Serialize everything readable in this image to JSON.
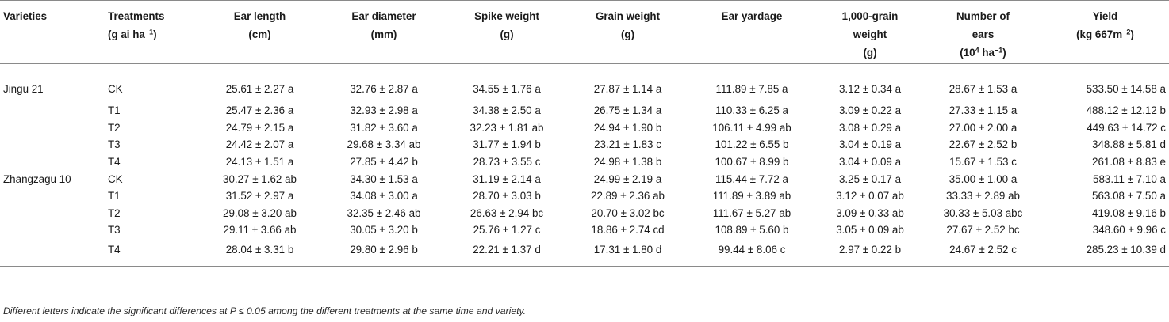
{
  "headers": {
    "varieties": [
      "Varieties"
    ],
    "treatments": [
      "Treatments",
      "(g ai ha",
      "−1",
      ")"
    ],
    "ear_length": [
      "Ear length",
      "(cm)"
    ],
    "ear_diameter": [
      "Ear diameter",
      "(mm)"
    ],
    "spike_weight": [
      "Spike weight",
      "(g)"
    ],
    "grain_weight": [
      "Grain weight",
      "(g)"
    ],
    "ear_yardage": [
      "Ear yardage"
    ],
    "thousand_grain": [
      "1,000-grain",
      "weight",
      "(g)"
    ],
    "number_of_ears": [
      "Number of",
      "ears",
      "(10",
      "4",
      " ha",
      "−1",
      ")"
    ],
    "yield": [
      "Yield",
      "(kg 667m",
      "−2",
      ")"
    ]
  },
  "rows": [
    {
      "variety": "Jingu 21",
      "treatment": "CK",
      "ear_length": "25.61 ± 2.27 a",
      "ear_diameter": "32.76 ± 2.87 a",
      "spike_weight": "34.55 ± 1.76 a",
      "grain_weight": "27.87 ± 1.14 a",
      "ear_yardage": "111.89 ± 7.85 a",
      "thousand_grain": "3.12 ± 0.34 a",
      "number_of_ears": "28.67 ± 1.53 a",
      "yield": "533.50 ± 14.58 a"
    },
    {
      "variety": "",
      "treatment": "T1",
      "ear_length": "25.47 ± 2.36 a",
      "ear_diameter": "32.93 ± 2.98 a",
      "spike_weight": "34.38 ± 2.50 a",
      "grain_weight": "26.75 ± 1.34 a",
      "ear_yardage": "110.33 ± 6.25 a",
      "thousand_grain": "3.09 ± 0.22 a",
      "number_of_ears": "27.33 ± 1.15 a",
      "yield": "488.12 ± 12.12 b"
    },
    {
      "variety": "",
      "treatment": "T2",
      "ear_length": "24.79 ± 2.15 a",
      "ear_diameter": "31.82 ± 3.60 a",
      "spike_weight": "32.23 ± 1.81 ab",
      "grain_weight": "24.94 ± 1.90 b",
      "ear_yardage": "106.11 ± 4.99 ab",
      "thousand_grain": "3.08 ± 0.29 a",
      "number_of_ears": "27.00 ± 2.00 a",
      "yield": "449.63 ± 14.72 c"
    },
    {
      "variety": "",
      "treatment": "T3",
      "ear_length": "24.42 ± 2.07 a",
      "ear_diameter": "29.68 ± 3.34 ab",
      "spike_weight": "31.77 ± 1.94 b",
      "grain_weight": "23.21 ± 1.83 c",
      "ear_yardage": "101.22 ± 6.55 b",
      "thousand_grain": "3.04 ± 0.19 a",
      "number_of_ears": "22.67 ± 2.52 b",
      "yield": "348.88 ± 5.81 d"
    },
    {
      "variety": "",
      "treatment": "T4",
      "ear_length": "24.13 ± 1.51 a",
      "ear_diameter": "27.85 ± 4.42 b",
      "spike_weight": "28.73 ± 3.55 c",
      "grain_weight": "24.98 ± 1.38 b",
      "ear_yardage": "100.67 ± 8.99 b",
      "thousand_grain": "3.04 ± 0.09 a",
      "number_of_ears": "15.67 ± 1.53 c",
      "yield": "261.08 ± 8.83 e"
    },
    {
      "variety": "Zhangzagu 10",
      "treatment": "CK",
      "ear_length": "30.27 ± 1.62 ab",
      "ear_diameter": "34.30 ± 1.53 a",
      "spike_weight": "31.19 ± 2.14 a",
      "grain_weight": "24.99 ± 2.19 a",
      "ear_yardage": "115.44 ± 7.72 a",
      "thousand_grain": "3.25 ± 0.17 a",
      "number_of_ears": "35.00 ± 1.00 a",
      "yield": "583.11 ± 7.10 a"
    },
    {
      "variety": "",
      "treatment": "T1",
      "ear_length": "31.52 ± 2.97 a",
      "ear_diameter": "34.08 ± 3.00 a",
      "spike_weight": "28.70 ± 3.03 b",
      "grain_weight": "22.89 ± 2.36 ab",
      "ear_yardage": "111.89 ± 3.89 ab",
      "thousand_grain": "3.12 ± 0.07 ab",
      "number_of_ears": "33.33 ± 2.89 ab",
      "yield": "563.08 ± 7.50 a"
    },
    {
      "variety": "",
      "treatment": "T2",
      "ear_length": "29.08 ± 3.20 ab",
      "ear_diameter": "32.35 ± 2.46 ab",
      "spike_weight": "26.63 ± 2.94 bc",
      "grain_weight": "20.70 ± 3.02 bc",
      "ear_yardage": "111.67 ± 5.27 ab",
      "thousand_grain": "3.09 ± 0.33 ab",
      "number_of_ears": "30.33 ± 5.03 abc",
      "yield": "419.08 ± 9.16 b"
    },
    {
      "variety": "",
      "treatment": "T3",
      "ear_length": "29.11 ± 3.66 ab",
      "ear_diameter": "30.05 ± 3.20 b",
      "spike_weight": "25.76 ± 1.27 c",
      "grain_weight": "18.86 ± 2.74 cd",
      "ear_yardage": "108.89 ± 5.60 b",
      "thousand_grain": "3.05 ± 0.09 ab",
      "number_of_ears": "27.67 ± 2.52 bc",
      "yield": "348.60 ± 9.96 c"
    },
    {
      "variety": "",
      "treatment": "T4",
      "ear_length": "28.04 ± 3.31 b",
      "ear_diameter": "29.80 ± 2.96 b",
      "spike_weight": "22.21 ± 1.37 d",
      "grain_weight": "17.31 ± 1.80 d",
      "ear_yardage": "99.44 ± 8.06 c",
      "thousand_grain": "2.97 ± 0.22 b",
      "number_of_ears": "24.67 ± 2.52 c",
      "yield": "285.23 ± 10.39 d"
    }
  ],
  "footnote": "Different letters indicate the significant differences at P ≤ 0.05 among the different treatments at the same time and variety."
}
